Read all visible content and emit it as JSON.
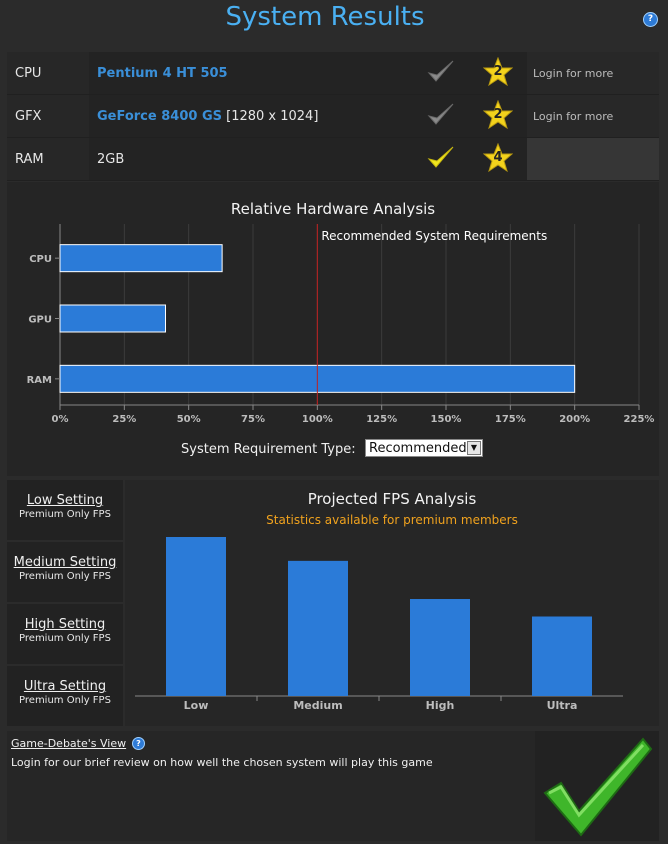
{
  "header": {
    "title": "System Results",
    "help_icon": "question-icon"
  },
  "hardware": {
    "rows": [
      {
        "label": "CPU",
        "value": "Pentium 4 HT 505",
        "extra": "",
        "check": "gray",
        "rating": "2",
        "login": "Login for more"
      },
      {
        "label": "GFX",
        "value": "GeForce 8400 GS",
        "extra": "[1280 x 1024]",
        "check": "gray",
        "rating": "2",
        "login": "Login for more"
      },
      {
        "label": "RAM",
        "value": "2GB",
        "extra": "",
        "check": "yellow",
        "rating": "4",
        "login": ""
      }
    ]
  },
  "hw_analysis": {
    "title": "Relative Hardware Analysis",
    "req_type_label": "System Requirement Type:",
    "req_type_value": "Recommended"
  },
  "fps": {
    "title": "Projected FPS Analysis",
    "subtitle": "Statistics available for premium members",
    "settings": [
      {
        "name": "Low Setting",
        "sub": "Premium Only FPS"
      },
      {
        "name": "Medium Setting",
        "sub": "Premium Only FPS"
      },
      {
        "name": "High Setting",
        "sub": "Premium Only FPS"
      },
      {
        "name": "Ultra Setting",
        "sub": "Premium Only FPS"
      }
    ]
  },
  "view": {
    "title": "Game-Debate's View",
    "text": "Login for our brief review on how well the chosen system will play this game"
  },
  "chart_data": [
    {
      "type": "bar",
      "orientation": "horizontal",
      "title": "Relative Hardware Analysis",
      "categories": [
        "CPU",
        "GPU",
        "RAM"
      ],
      "values": [
        63,
        41,
        200
      ],
      "xlim": [
        0,
        225
      ],
      "xticks": [
        "0%",
        "25%",
        "50%",
        "75%",
        "100%",
        "125%",
        "150%",
        "175%",
        "200%",
        "225%"
      ],
      "reference_line": {
        "value": 100,
        "label": "Recommended System Requirements",
        "color": "#c02020"
      },
      "bar_color": "#2b7bd8",
      "grid": true
    },
    {
      "type": "bar",
      "title": "Projected FPS Analysis",
      "categories": [
        "Low",
        "Medium",
        "High",
        "Ultra"
      ],
      "values": [
        100,
        85,
        61,
        50
      ],
      "ylim": [
        0,
        100
      ],
      "bar_color": "#2b7bd8",
      "grid": false
    }
  ]
}
